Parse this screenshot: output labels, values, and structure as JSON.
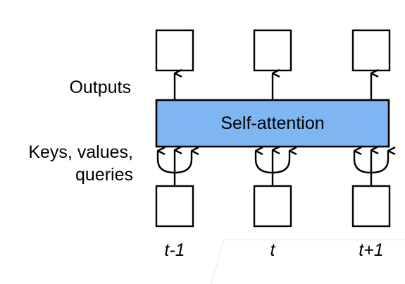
{
  "labels": {
    "outputs": "Outputs",
    "inputs_line1": "Keys, values,",
    "inputs_line2": "queries",
    "block": "Self-attention"
  },
  "timesteps": [
    "t-1",
    "t",
    "t+1"
  ],
  "colors": {
    "block_fill": "#7eb6f2",
    "stroke": "#000000"
  }
}
